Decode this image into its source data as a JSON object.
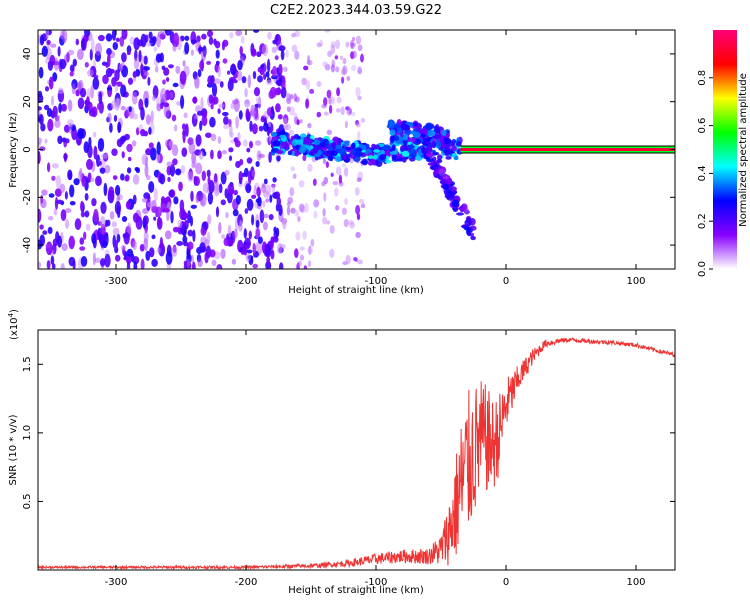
{
  "figure_title": "C2E2.2023.344.03.59.G22",
  "chart_data": [
    {
      "type": "heatmap",
      "title": "C2E2.2023.344.03.59.G22",
      "xlabel": "Height of straight line (km)",
      "ylabel": "Frequency (Hz)",
      "xlim": [
        -360,
        130
      ],
      "ylim": [
        -50,
        50
      ],
      "xticks": [
        -300,
        -200,
        -100,
        0,
        100
      ],
      "xtick_labels": [
        "-300",
        "-200",
        "-100",
        "0",
        "100"
      ],
      "yticks": [
        -40,
        -20,
        0,
        20,
        40
      ],
      "ytick_labels": [
        "-40",
        "-20",
        "0",
        "20",
        "40"
      ],
      "colorbar": {
        "label": "Normalized spectral amplitude",
        "range": [
          0,
          1
        ],
        "ticks": [
          0.0,
          0.2,
          0.4,
          0.6,
          0.8
        ],
        "tick_labels": [
          "0.0",
          "0.2",
          "0.4",
          "0.6",
          "0.8"
        ],
        "colormap": [
          "#ffffff",
          "#8800ff",
          "#0000ff",
          "#00ffff",
          "#00ff00",
          "#ffff00",
          "#ff0000",
          "#ff0077"
        ]
      },
      "regions": [
        {
          "name": "diffuse noise",
          "x_range": [
            -360,
            -170
          ],
          "y_range": [
            -50,
            50
          ],
          "amplitude": 0.1
        },
        {
          "name": "sparse noise",
          "x_range": [
            -170,
            -110
          ],
          "y_range": [
            -50,
            50
          ],
          "amplitude": 0.05
        },
        {
          "name": "main trace",
          "x_range": [
            -180,
            -35
          ],
          "y_center_at_x": [
            [
              -180,
              3
            ],
            [
              -100,
              -2
            ],
            [
              -60,
              1
            ],
            [
              -35,
              0
            ]
          ],
          "amplitude": 0.3
        },
        {
          "name": "upper branch",
          "x_range": [
            -90,
            -45
          ],
          "y_center_at_x": [
            [
              -90,
              8
            ],
            [
              -45,
              5
            ]
          ],
          "amplitude": 0.25
        },
        {
          "name": "lower branch",
          "x_range": [
            -60,
            -25
          ],
          "y_center_at_x": [
            [
              -60,
              0
            ],
            [
              -25,
              -35
            ]
          ],
          "amplitude": 0.2
        },
        {
          "name": "carrier line",
          "x_range": [
            -35,
            130
          ],
          "y_center": 0,
          "amplitude": 1.0
        }
      ]
    },
    {
      "type": "line",
      "xlabel": "Height of straight line (km)",
      "ylabel": "SNR (10 * v/v)",
      "y_multiplier_label": "(x10",
      "y_multiplier_exp": "4",
      "xlim": [
        -360,
        130
      ],
      "ylim": [
        0,
        1.75
      ],
      "xticks": [
        -300,
        -200,
        -100,
        0,
        100
      ],
      "xtick_labels": [
        "-300",
        "-200",
        "-100",
        "0",
        "100"
      ],
      "yticks": [
        0.5,
        1.0,
        1.5
      ],
      "ytick_labels": [
        "0.5",
        "1.0",
        "1.5"
      ],
      "line_color": "#ee3333",
      "x": [
        -360,
        -300,
        -250,
        -200,
        -150,
        -120,
        -100,
        -80,
        -60,
        -50,
        -45,
        -40,
        -35,
        -30,
        -25,
        -20,
        -15,
        -10,
        -5,
        0,
        10,
        20,
        30,
        40,
        50,
        60,
        80,
        100,
        120,
        130
      ],
      "y": [
        0.02,
        0.02,
        0.02,
        0.02,
        0.03,
        0.05,
        0.08,
        0.1,
        0.1,
        0.15,
        0.25,
        0.4,
        0.6,
        0.75,
        0.85,
        0.95,
        0.95,
        0.9,
        1.0,
        1.2,
        1.4,
        1.55,
        1.65,
        1.67,
        1.68,
        1.67,
        1.66,
        1.64,
        1.59,
        1.57
      ],
      "noise_amp": [
        0.008,
        0.008,
        0.01,
        0.01,
        0.015,
        0.025,
        0.04,
        0.05,
        0.06,
        0.12,
        0.22,
        0.35,
        0.5,
        0.55,
        0.5,
        0.45,
        0.4,
        0.35,
        0.3,
        0.2,
        0.1,
        0.06,
        0.03,
        0.02,
        0.015,
        0.015,
        0.015,
        0.015,
        0.015,
        0.015
      ]
    }
  ]
}
